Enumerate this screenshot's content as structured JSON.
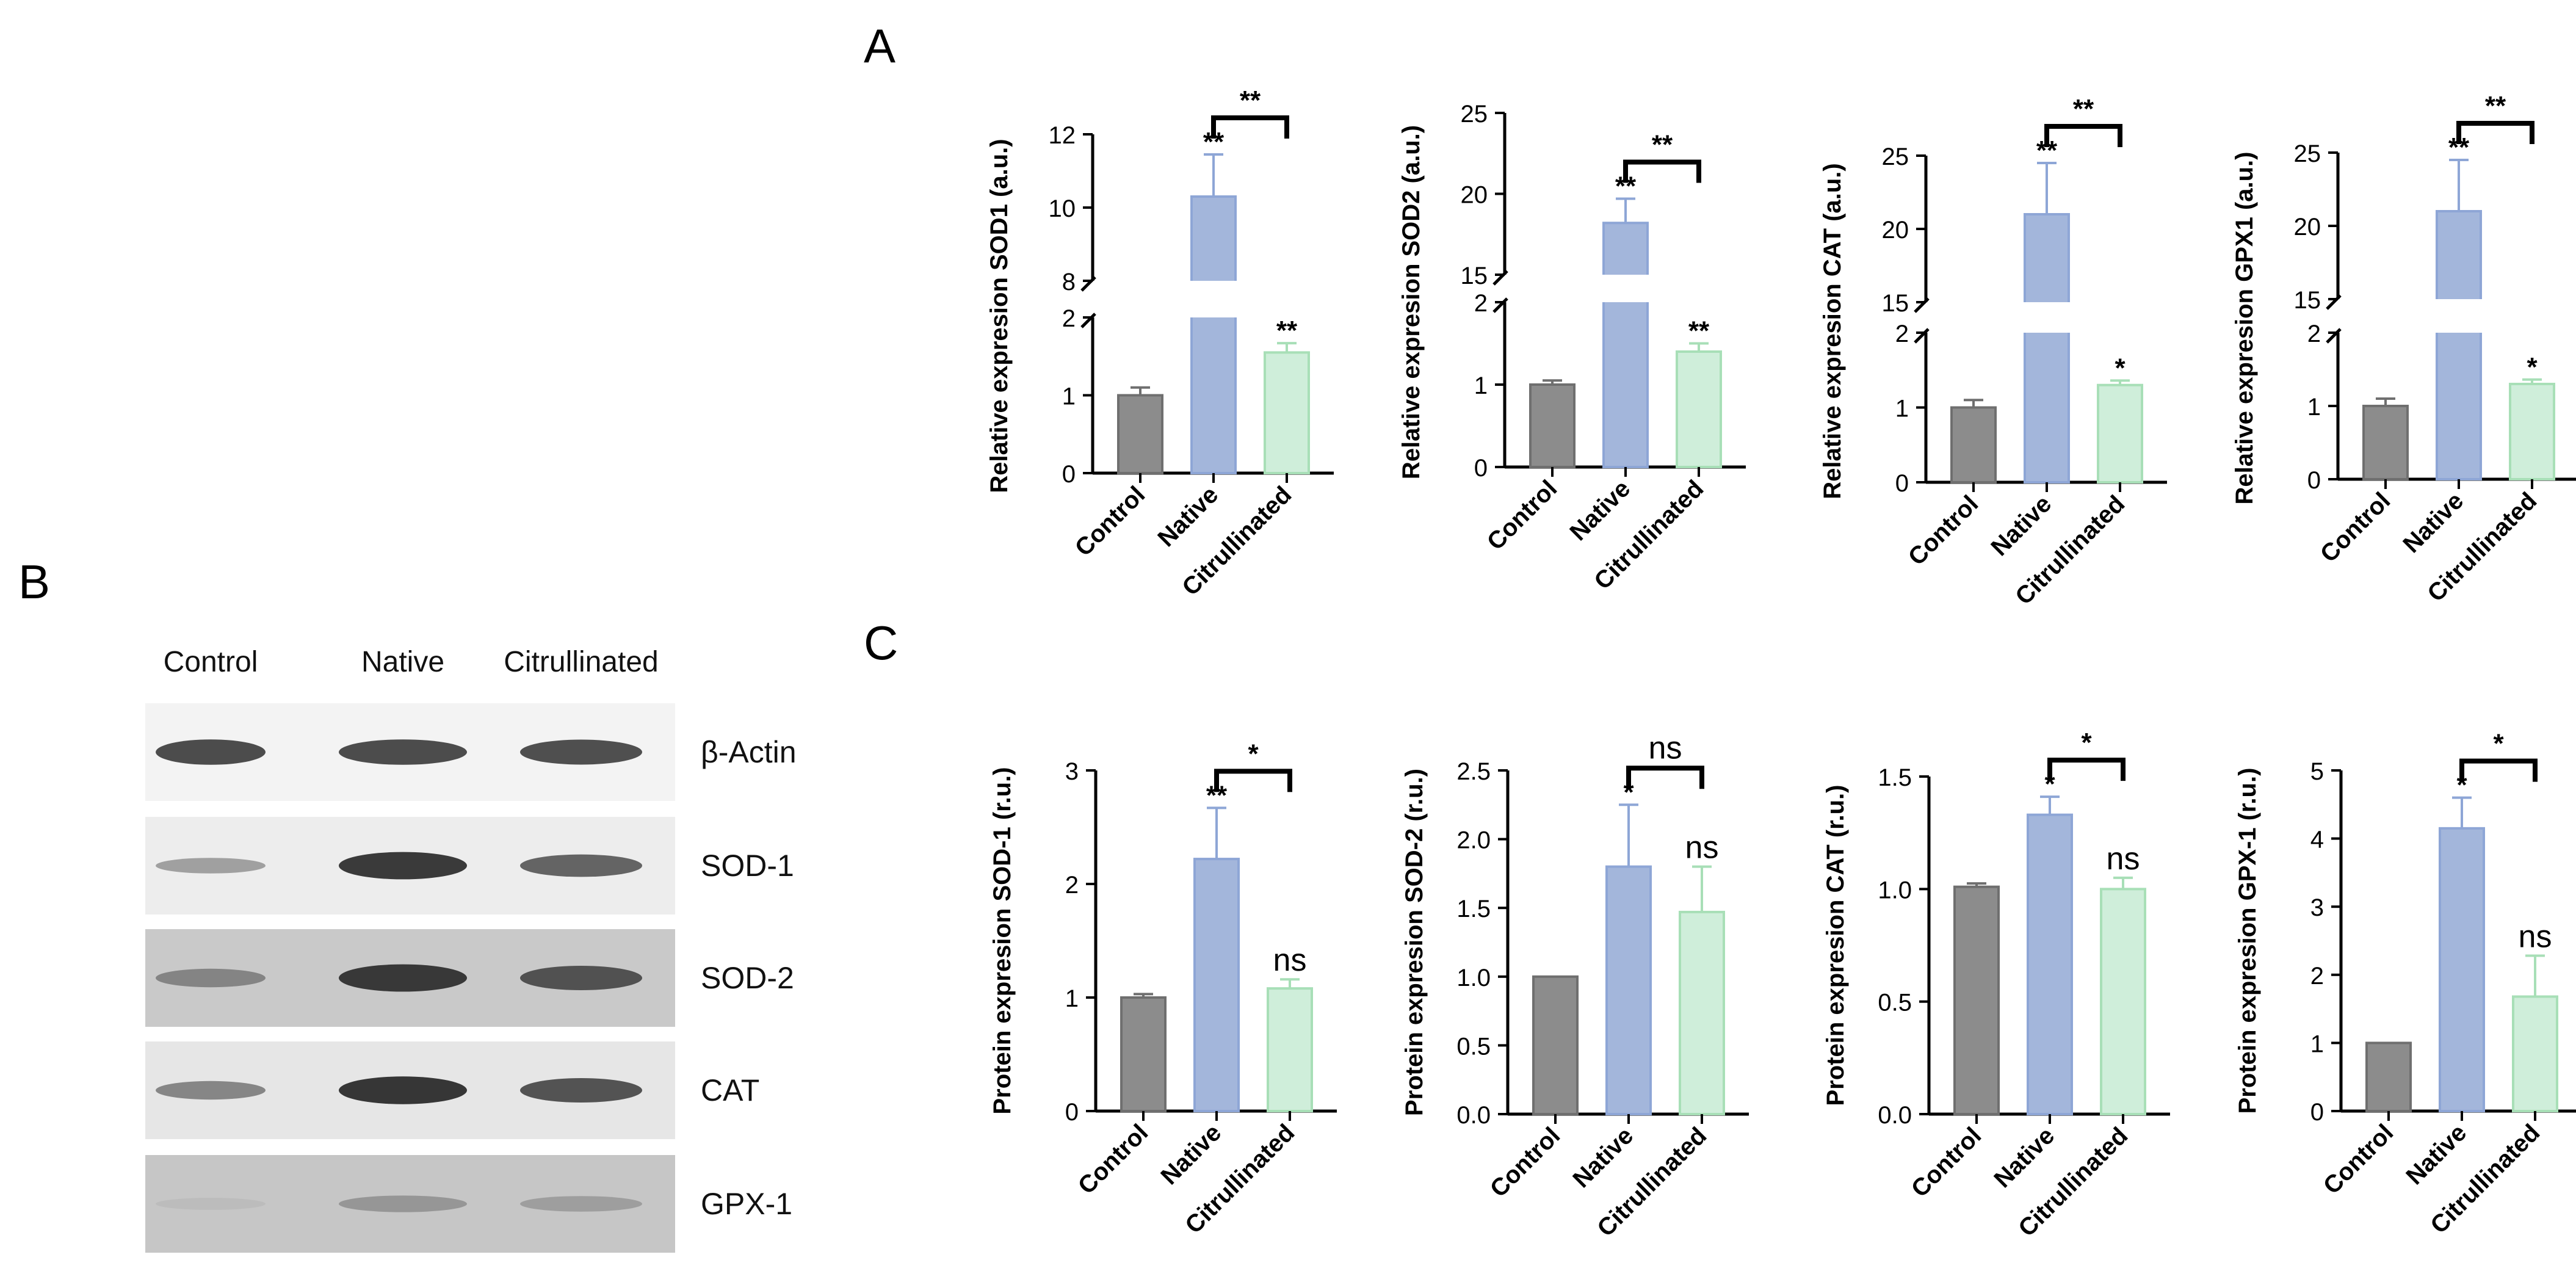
{
  "panels": {
    "a": "A",
    "b": "B",
    "c": "C"
  },
  "colors": {
    "control": "#8c8c8c",
    "native": "#a3b6db",
    "citrullinated": "#cfeeda",
    "native_stroke": "#8ea6d6",
    "cit_stroke": "#a8dfb7",
    "axis": "#000000"
  },
  "western_blot": {
    "lanes": [
      "Control",
      "Native",
      "Citrullinated"
    ],
    "bands": [
      {
        "label": "β-Actin",
        "intensity": [
          0.8,
          0.8,
          0.78
        ],
        "bg": "#f3f3f3"
      },
      {
        "label": "SOD-1",
        "intensity": [
          0.3,
          0.9,
          0.65
        ],
        "bg": "#ededed"
      },
      {
        "label": "SOD-2",
        "intensity": [
          0.45,
          0.9,
          0.75
        ],
        "bg": "#c9c9c9"
      },
      {
        "label": "CAT",
        "intensity": [
          0.45,
          0.92,
          0.75
        ],
        "bg": "#e6e6e6"
      },
      {
        "label": "GPX-1",
        "intensity": [
          0.12,
          0.35,
          0.3
        ],
        "bg": "#c6c6c6"
      }
    ]
  },
  "chart_data": [
    {
      "type": "bar",
      "id": "rna-sod1",
      "categories": [
        "Control",
        "Native",
        "Citrullinated"
      ],
      "values": [
        1.0,
        10.3,
        1.55
      ],
      "errors": [
        0.1,
        1.15,
        0.12
      ],
      "ylabel": "Relative expresion SOD1  (a.u.)",
      "broken_axis": {
        "lower": [
          0,
          2
        ],
        "upper": [
          8,
          12
        ],
        "lower_ticks": [
          "0",
          "1",
          "2"
        ],
        "upper_ticks": [
          "8",
          "10",
          "12"
        ]
      },
      "bar_labels": [
        "",
        "**",
        "**"
      ],
      "bracket": {
        "from": 1,
        "to": 2,
        "label": "**"
      }
    },
    {
      "type": "bar",
      "id": "rna-sod2",
      "categories": [
        "Control",
        "Native",
        "Citrullinated"
      ],
      "values": [
        1.0,
        18.2,
        1.4
      ],
      "errors": [
        0.05,
        1.5,
        0.1
      ],
      "ylabel": "Relative expresion SOD2  (a.u.)",
      "broken_axis": {
        "lower": [
          0,
          2
        ],
        "upper": [
          15,
          25
        ],
        "lower_ticks": [
          "0",
          "1",
          "2"
        ],
        "upper_ticks": [
          "15",
          "20",
          "25"
        ]
      },
      "bar_labels": [
        "",
        "**",
        "**"
      ],
      "bracket": {
        "from": 1,
        "to": 2,
        "label": "**"
      }
    },
    {
      "type": "bar",
      "id": "rna-cat",
      "categories": [
        "Control",
        "Native",
        "Citrullinated"
      ],
      "values": [
        1.0,
        21.0,
        1.3
      ],
      "errors": [
        0.1,
        3.5,
        0.06
      ],
      "ylabel": "Relative expresion CAT  (a.u.)",
      "broken_axis": {
        "lower": [
          0,
          2
        ],
        "upper": [
          15,
          25
        ],
        "lower_ticks": [
          "0",
          "1",
          "2"
        ],
        "upper_ticks": [
          "15",
          "20",
          "25"
        ]
      },
      "bar_labels": [
        "",
        "**",
        "*"
      ],
      "bracket": {
        "from": 1,
        "to": 2,
        "label": "**"
      }
    },
    {
      "type": "bar",
      "id": "rna-gpx1",
      "categories": [
        "Control",
        "Native",
        "Citrullinated"
      ],
      "values": [
        1.0,
        21.0,
        1.3
      ],
      "errors": [
        0.1,
        3.5,
        0.06
      ],
      "ylabel": "Relative expresion GPX1  (a.u.)",
      "broken_axis": {
        "lower": [
          0,
          2
        ],
        "upper": [
          15,
          25
        ],
        "lower_ticks": [
          "0",
          "1",
          "2"
        ],
        "upper_ticks": [
          "15",
          "20",
          "25"
        ]
      },
      "bar_labels": [
        "",
        "**",
        "*"
      ],
      "bracket": {
        "from": 1,
        "to": 2,
        "label": "**"
      }
    },
    {
      "type": "bar",
      "id": "prot-sod1",
      "categories": [
        "Control",
        "Native",
        "Citrullinated"
      ],
      "values": [
        1.0,
        2.22,
        1.08
      ],
      "errors": [
        0.03,
        0.45,
        0.08
      ],
      "ylabel": "Protein expresion SOD-1 (r.u.)",
      "ylim": [
        0,
        3
      ],
      "ticks": [
        "0",
        "1",
        "2",
        "3"
      ],
      "bar_labels": [
        "",
        "**",
        "ns"
      ],
      "bracket": {
        "from": 1,
        "to": 2,
        "label": "*"
      }
    },
    {
      "type": "bar",
      "id": "prot-sod2",
      "categories": [
        "Control",
        "Native",
        "Citrullinated"
      ],
      "values": [
        1.0,
        1.8,
        1.47
      ],
      "errors": [
        0.0,
        0.45,
        0.33
      ],
      "ylabel": "Protein expresion SOD-2 (r.u.)",
      "ylim": [
        0,
        2.5
      ],
      "ticks": [
        "0.0",
        "0.5",
        "1.0",
        "1.5",
        "2.0",
        "2.5"
      ],
      "bar_labels": [
        "",
        "*",
        "ns"
      ],
      "bracket": {
        "from": 1,
        "to": 2,
        "label": "ns"
      }
    },
    {
      "type": "bar",
      "id": "prot-cat",
      "categories": [
        "Control",
        "Native",
        "Citrullinated"
      ],
      "values": [
        1.01,
        1.33,
        1.0
      ],
      "errors": [
        0.015,
        0.08,
        0.05
      ],
      "ylabel": "Protein expresion CAT (r.u.)",
      "ylim": [
        0,
        1.5
      ],
      "ticks": [
        "0.0",
        "0.5",
        "1.0",
        "1.5"
      ],
      "bar_labels": [
        "",
        "*",
        "ns"
      ],
      "bracket": {
        "from": 1,
        "to": 2,
        "label": "*"
      }
    },
    {
      "type": "bar",
      "id": "prot-gpx1",
      "categories": [
        "Control",
        "Native",
        "Citrullinated"
      ],
      "values": [
        1.0,
        4.15,
        1.68
      ],
      "errors": [
        0.0,
        0.45,
        0.6
      ],
      "ylabel": "Protein expresion GPX-1 (r.u.)",
      "ylim": [
        0,
        5
      ],
      "ticks": [
        "0",
        "1",
        "2",
        "3",
        "4",
        "5"
      ],
      "bar_labels": [
        "",
        "*",
        "ns"
      ],
      "bracket": {
        "from": 1,
        "to": 2,
        "label": "*"
      }
    }
  ]
}
